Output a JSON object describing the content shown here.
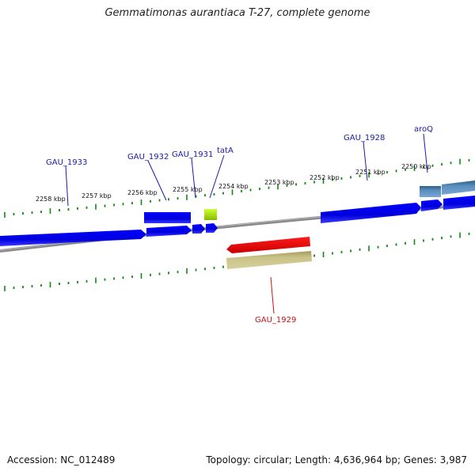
{
  "title": "Gemmatimonas aurantiaca T-27, complete genome",
  "footer": {
    "accession": "Accession: NC_012489",
    "summary": "Topology: circular; Length: 4,636,964 bp; Genes: 3,987"
  },
  "scale_labels": [
    "2258 kbp",
    "2257 kbp",
    "2256 kbp",
    "2255 kbp",
    "2254 kbp",
    "2253 kbp",
    "2252 kbp",
    "2251 kbp",
    "2250 kbp"
  ],
  "genes": {
    "gau1933": "GAU_1933",
    "gau1932": "GAU_1932",
    "gau1931": "GAU_1931",
    "tata": "tatA",
    "gau1928": "GAU_1928",
    "aroq": "aroQ",
    "gau1929": "GAU_1929"
  },
  "colors": {
    "forward_gene": "#0000ee",
    "reverse_gene": "#ee0000",
    "tat_gene": "#99cc00",
    "aro_gene": "#4682b4",
    "rna_band": "#bdb76b",
    "backbone": "#808080",
    "tick": "#118811",
    "label_blue": "#1a1aa6",
    "label_red": "#cc1111"
  }
}
